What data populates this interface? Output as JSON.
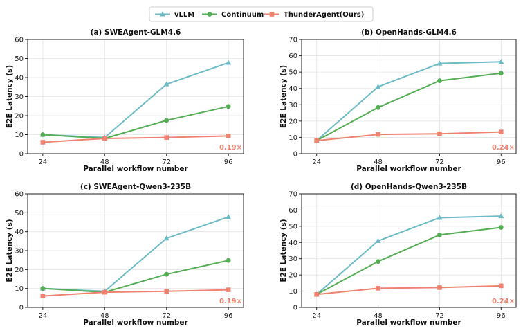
{
  "colors": {
    "vllm": "#6dbbc4",
    "continuum": "#55ad55",
    "thunder": "#ee8270",
    "annotation": "#ee8270"
  },
  "legend": {
    "position": "top-center",
    "entries": [
      {
        "name": "vLLM",
        "marker": "triangle",
        "color_key": "vllm"
      },
      {
        "name": "Continuum",
        "marker": "circle",
        "color_key": "continuum"
      },
      {
        "name": "ThunderAgent(Ours)",
        "marker": "square",
        "color_key": "thunder"
      }
    ]
  },
  "chart_data": [
    {
      "type": "line",
      "title": "(a) SWEAgent-GLM4.6",
      "xlabel": "Parallel workflow number",
      "ylabel": "E2E Latency (s)",
      "x": [
        24,
        48,
        72,
        96
      ],
      "ylim": [
        0,
        60
      ],
      "yticks": [
        0,
        10,
        20,
        30,
        40,
        50,
        60
      ],
      "grid": true,
      "series": [
        {
          "name": "vLLM",
          "values": [
            10.0,
            8.5,
            36.5,
            47.8
          ]
        },
        {
          "name": "Continuum",
          "values": [
            10.0,
            8.0,
            17.5,
            24.8
          ]
        },
        {
          "name": "ThunderAgent(Ours)",
          "values": [
            6.0,
            8.0,
            8.5,
            9.3
          ]
        }
      ],
      "annotation": "0.19×"
    },
    {
      "type": "line",
      "title": "(b) OpenHands-GLM4.6",
      "xlabel": "Parallel workflow number",
      "ylabel": "E2E Latency (s)",
      "x": [
        24,
        48,
        72,
        96
      ],
      "ylim": [
        0,
        70
      ],
      "yticks": [
        0,
        10,
        20,
        30,
        40,
        50,
        60,
        70
      ],
      "grid": true,
      "series": [
        {
          "name": "vLLM",
          "values": [
            8.0,
            41.0,
            55.3,
            56.3
          ]
        },
        {
          "name": "Continuum",
          "values": [
            8.0,
            28.3,
            44.7,
            49.3
          ]
        },
        {
          "name": "ThunderAgent(Ours)",
          "values": [
            8.0,
            11.8,
            12.2,
            13.3
          ]
        }
      ],
      "annotation": "0.24×"
    },
    {
      "type": "line",
      "title": "(c) SWEAgent-Qwen3-235B",
      "xlabel": "Parallel workflow number",
      "ylabel": "E2E Latency (s)",
      "x": [
        24,
        48,
        72,
        96
      ],
      "ylim": [
        0,
        60
      ],
      "yticks": [
        0,
        10,
        20,
        30,
        40,
        50,
        60
      ],
      "grid": true,
      "series": [
        {
          "name": "vLLM",
          "values": [
            10.0,
            8.5,
            36.5,
            47.8
          ]
        },
        {
          "name": "Continuum",
          "values": [
            10.0,
            8.0,
            17.5,
            24.8
          ]
        },
        {
          "name": "ThunderAgent(Ours)",
          "values": [
            6.0,
            8.0,
            8.5,
            9.3
          ]
        }
      ],
      "annotation": "0.19×"
    },
    {
      "type": "line",
      "title": "(d) OpenHands-Qwen3-235B",
      "xlabel": "Parallel workflow number",
      "ylabel": "E2E Latency (s)",
      "x": [
        24,
        48,
        72,
        96
      ],
      "ylim": [
        0,
        70
      ],
      "yticks": [
        0,
        10,
        20,
        30,
        40,
        50,
        60,
        70
      ],
      "grid": true,
      "series": [
        {
          "name": "vLLM",
          "values": [
            8.0,
            41.0,
            55.3,
            56.3
          ]
        },
        {
          "name": "Continuum",
          "values": [
            8.0,
            28.3,
            44.7,
            49.3
          ]
        },
        {
          "name": "ThunderAgent(Ours)",
          "values": [
            8.0,
            11.8,
            12.2,
            13.3
          ]
        }
      ],
      "annotation": "0.24×"
    }
  ]
}
